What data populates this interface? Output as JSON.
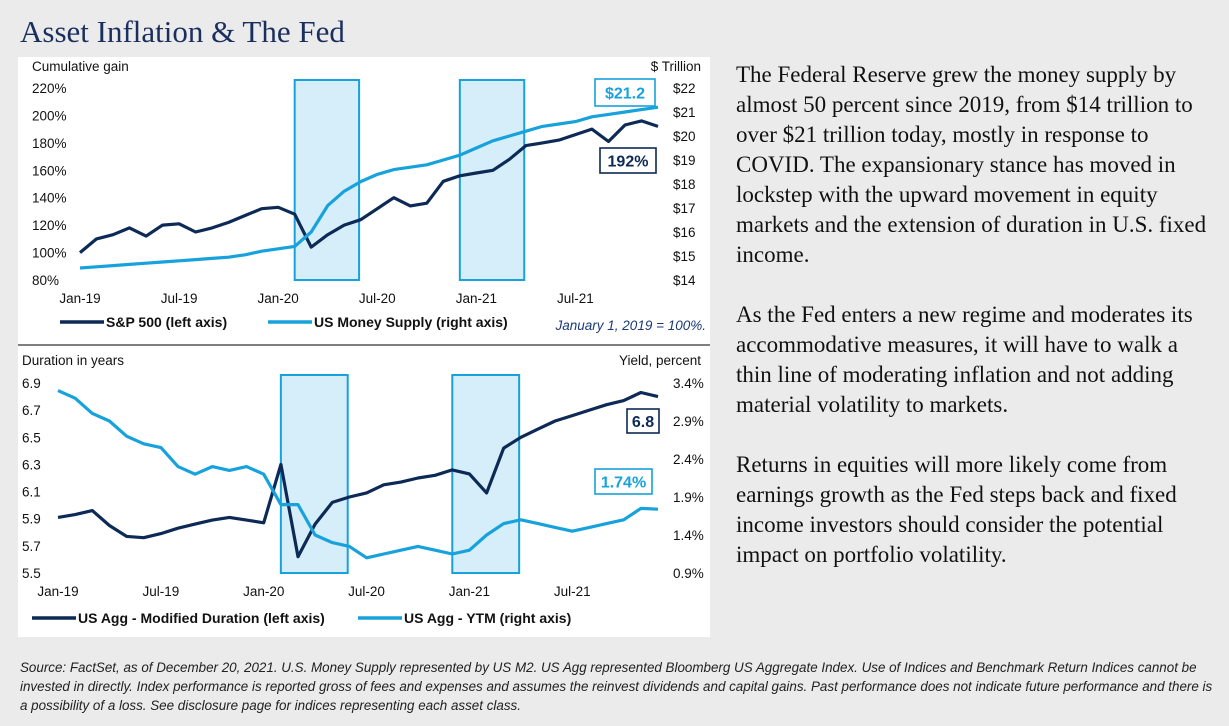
{
  "title": "Asset Inflation & The Fed",
  "paragraphs": [
    "The Federal Reserve grew the money supply by almost 50 percent since 2019, from $14 trillion to over $21 trillion today, mostly in response to COVID. The expansionary stance has moved in lockstep with the upward movement in equity markets and the extension of duration in U.S. fixed income.",
    "As the Fed enters a new regime and moderates its accommodative measures, it will have to walk a thin line of moderating inflation and not adding material volatility to markets.",
    "Returns in equities will more likely come from earnings growth as the Fed steps back and fixed income investors should consider the potential impact on portfolio volatility."
  ],
  "source": "Source: FactSet, as of December 20, 2021. U.S. Money Supply represented by US M2. US Agg represented Bloomberg US Aggregate Index. Use of Indices and Benchmark Return Indices cannot be invested in directly. Index performance is reported gross of fees and expenses and assumes the reinvest dividends and capital gains. Past performance does not indicate future performance and there is a possibility of a loss. See disclosure page for indices representing each asset class.",
  "colors": {
    "dark_navy": "#0d2a57",
    "light_blue": "#17a2dc",
    "title": "#1b2f5e",
    "shade": "#d5eef9"
  },
  "chart_data": [
    {
      "type": "line",
      "ylabel": "Cumulative gain",
      "y2label": "$ Trillion",
      "x_ticks": [
        "Jan-19",
        "Jul-19",
        "Jan-20",
        "Jul-20",
        "Jan-21",
        "Jul-21"
      ],
      "y_ticks": [
        "80%",
        "100%",
        "120%",
        "140%",
        "160%",
        "180%",
        "200%",
        "220%"
      ],
      "y2_ticks": [
        "$14",
        "$15",
        "$16",
        "$17",
        "$18",
        "$19",
        "$20",
        "$21",
        "$22"
      ],
      "ylim": [
        80,
        220
      ],
      "y2lim": [
        14,
        22
      ],
      "xlim": [
        "2019-01",
        "2021-12"
      ],
      "note": "January 1, 2019 = 100%.",
      "shaded_periods": [
        [
          "2020-02",
          "2020-05"
        ],
        [
          "2020-12",
          "2021-03"
        ]
      ],
      "callouts": [
        "$21.2",
        "192%"
      ],
      "series": [
        {
          "name": "S&P 500 (left axis)",
          "axis": "left",
          "x": [
            "2019-01",
            "2019-02",
            "2019-03",
            "2019-04",
            "2019-05",
            "2019-06",
            "2019-07",
            "2019-08",
            "2019-09",
            "2019-10",
            "2019-11",
            "2019-12",
            "2020-01",
            "2020-02",
            "2020-03",
            "2020-04",
            "2020-05",
            "2020-06",
            "2020-07",
            "2020-08",
            "2020-09",
            "2020-10",
            "2020-11",
            "2020-12",
            "2021-01",
            "2021-02",
            "2021-03",
            "2021-04",
            "2021-05",
            "2021-06",
            "2021-07",
            "2021-08",
            "2021-09",
            "2021-10",
            "2021-11",
            "2021-12"
          ],
          "values": [
            100,
            110,
            113,
            118,
            112,
            120,
            121,
            115,
            118,
            122,
            127,
            132,
            133,
            128,
            104,
            113,
            120,
            124,
            132,
            140,
            134,
            136,
            152,
            156,
            158,
            160,
            168,
            178,
            180,
            182,
            186,
            190,
            181,
            193,
            196,
            192
          ]
        },
        {
          "name": "US Money Supply (right axis)",
          "axis": "right",
          "x": [
            "2019-01",
            "2019-02",
            "2019-03",
            "2019-04",
            "2019-05",
            "2019-06",
            "2019-07",
            "2019-08",
            "2019-09",
            "2019-10",
            "2019-11",
            "2019-12",
            "2020-01",
            "2020-02",
            "2020-03",
            "2020-04",
            "2020-05",
            "2020-06",
            "2020-07",
            "2020-08",
            "2020-09",
            "2020-10",
            "2020-11",
            "2020-12",
            "2021-01",
            "2021-02",
            "2021-03",
            "2021-04",
            "2021-05",
            "2021-06",
            "2021-07",
            "2021-08",
            "2021-09",
            "2021-10",
            "2021-11",
            "2021-12"
          ],
          "values": [
            14.5,
            14.55,
            14.6,
            14.65,
            14.7,
            14.75,
            14.8,
            14.85,
            14.9,
            14.95,
            15.05,
            15.2,
            15.3,
            15.4,
            16.0,
            17.1,
            17.7,
            18.1,
            18.4,
            18.6,
            18.7,
            18.8,
            19.0,
            19.2,
            19.5,
            19.8,
            20.0,
            20.2,
            20.4,
            20.5,
            20.6,
            20.8,
            20.9,
            21.0,
            21.1,
            21.2
          ]
        }
      ]
    },
    {
      "type": "line",
      "ylabel": "Duration in years",
      "y2label": "Yield, percent",
      "x_ticks": [
        "Jan-19",
        "Jul-19",
        "Jan-20",
        "Jul-20",
        "Jan-21",
        "Jul-21"
      ],
      "y_ticks": [
        "5.5",
        "5.7",
        "5.9",
        "6.1",
        "6.3",
        "6.5",
        "6.7",
        "6.9"
      ],
      "y2_ticks": [
        "0.9%",
        "1.4%",
        "1.9%",
        "2.4%",
        "2.9%",
        "3.4%"
      ],
      "ylim": [
        5.5,
        6.9
      ],
      "y2lim": [
        0.9,
        3.4
      ],
      "xlim": [
        "2019-01",
        "2021-12"
      ],
      "shaded_periods": [
        [
          "2020-02",
          "2020-05"
        ],
        [
          "2020-12",
          "2021-03"
        ]
      ],
      "callouts": [
        "6.8",
        "1.74%"
      ],
      "series": [
        {
          "name": "US Agg - Modified Duration (left axis)",
          "axis": "left",
          "x": [
            "2019-01",
            "2019-02",
            "2019-03",
            "2019-04",
            "2019-05",
            "2019-06",
            "2019-07",
            "2019-08",
            "2019-09",
            "2019-10",
            "2019-11",
            "2019-12",
            "2020-01",
            "2020-02",
            "2020-03",
            "2020-04",
            "2020-05",
            "2020-06",
            "2020-07",
            "2020-08",
            "2020-09",
            "2020-10",
            "2020-11",
            "2020-12",
            "2021-01",
            "2021-02",
            "2021-03",
            "2021-04",
            "2021-05",
            "2021-06",
            "2021-07",
            "2021-08",
            "2021-09",
            "2021-10",
            "2021-11",
            "2021-12"
          ],
          "values": [
            5.91,
            5.93,
            5.96,
            5.85,
            5.77,
            5.76,
            5.79,
            5.83,
            5.86,
            5.89,
            5.91,
            5.89,
            5.87,
            6.3,
            5.62,
            5.86,
            6.02,
            6.06,
            6.09,
            6.15,
            6.17,
            6.2,
            6.22,
            6.26,
            6.23,
            6.09,
            6.42,
            6.5,
            6.56,
            6.62,
            6.66,
            6.7,
            6.74,
            6.77,
            6.83,
            6.8
          ]
        },
        {
          "name": "US Agg - YTM (right axis)",
          "axis": "right",
          "x": [
            "2019-01",
            "2019-02",
            "2019-03",
            "2019-04",
            "2019-05",
            "2019-06",
            "2019-07",
            "2019-08",
            "2019-09",
            "2019-10",
            "2019-11",
            "2019-12",
            "2020-01",
            "2020-02",
            "2020-03",
            "2020-04",
            "2020-05",
            "2020-06",
            "2020-07",
            "2020-08",
            "2020-09",
            "2020-10",
            "2020-11",
            "2020-12",
            "2021-01",
            "2021-02",
            "2021-03",
            "2021-04",
            "2021-05",
            "2021-06",
            "2021-07",
            "2021-08",
            "2021-09",
            "2021-10",
            "2021-11",
            "2021-12"
          ],
          "values": [
            3.3,
            3.2,
            3.0,
            2.9,
            2.7,
            2.6,
            2.55,
            2.3,
            2.2,
            2.3,
            2.25,
            2.3,
            2.2,
            1.8,
            1.8,
            1.4,
            1.3,
            1.25,
            1.1,
            1.15,
            1.2,
            1.25,
            1.2,
            1.15,
            1.2,
            1.4,
            1.55,
            1.6,
            1.55,
            1.5,
            1.45,
            1.5,
            1.55,
            1.6,
            1.75,
            1.74
          ]
        }
      ]
    }
  ]
}
